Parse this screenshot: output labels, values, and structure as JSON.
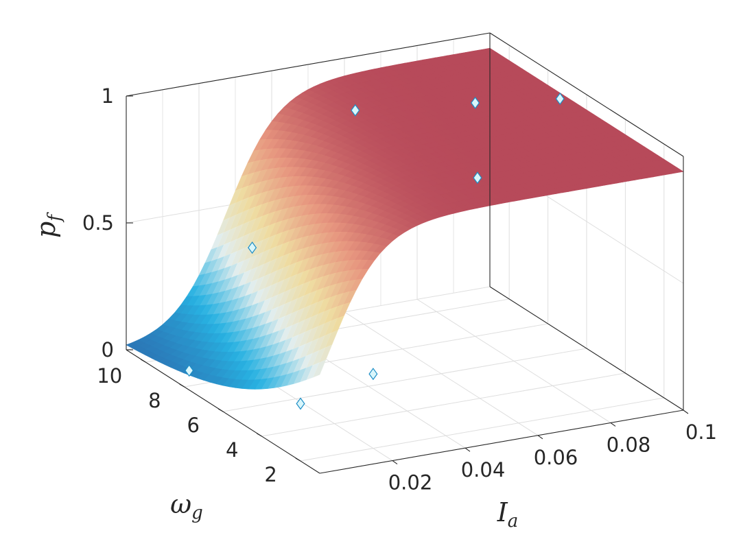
{
  "chart_data": {
    "type": "surface",
    "xlabel": "I",
    "xlabel_sub": "a",
    "ylabel": "ω",
    "ylabel_sub": "g",
    "zlabel": "p",
    "zlabel_sub": "f",
    "xlim": [
      0,
      0.1
    ],
    "ylim": [
      1,
      11
    ],
    "zlim": [
      0,
      1
    ],
    "x_ticks": [
      {
        "value": 0.02,
        "label": "0.02"
      },
      {
        "value": 0.04,
        "label": "0.04"
      },
      {
        "value": 0.06,
        "label": "0.06"
      },
      {
        "value": 0.08,
        "label": "0.08"
      },
      {
        "value": 0.1,
        "label": "0.1"
      }
    ],
    "y_ticks": [
      {
        "value": 2,
        "label": "2"
      },
      {
        "value": 4,
        "label": "4"
      },
      {
        "value": 6,
        "label": "6"
      },
      {
        "value": 8,
        "label": "8"
      },
      {
        "value": 10,
        "label": "10"
      }
    ],
    "z_ticks": [
      {
        "value": 0,
        "label": "0"
      },
      {
        "value": 0.5,
        "label": "0.5"
      },
      {
        "value": 1,
        "label": "1"
      }
    ],
    "surface_model": "logistic",
    "surface_params": {
      "center_base": 0.0,
      "center_slope": 0.0025,
      "steepness": 140,
      "max": 0.94
    },
    "colormap": [
      "#2b6fb0",
      "#29b5e6",
      "#e8f4f4",
      "#f5e2a6",
      "#ec9a82",
      "#b74a5a"
    ],
    "grid": true,
    "markers": [
      {
        "x": 0.004,
        "y": 8.5,
        "z": 0.03
      },
      {
        "x": 0.016,
        "y": 5.0,
        "z": 0.04
      },
      {
        "x": 0.024,
        "y": 9.0,
        "z": 0.44
      },
      {
        "x": 0.028,
        "y": 3.5,
        "z": 0.2
      },
      {
        "x": 0.055,
        "y": 9.5,
        "z": 0.88
      },
      {
        "x": 0.062,
        "y": 4.5,
        "z": 0.84
      },
      {
        "x": 0.08,
        "y": 8.0,
        "z": 0.92
      },
      {
        "x": 0.098,
        "y": 7.0,
        "z": 0.94
      }
    ],
    "marker_color": "#d9f6fb",
    "marker_edge_color": "#1c8dc6"
  }
}
